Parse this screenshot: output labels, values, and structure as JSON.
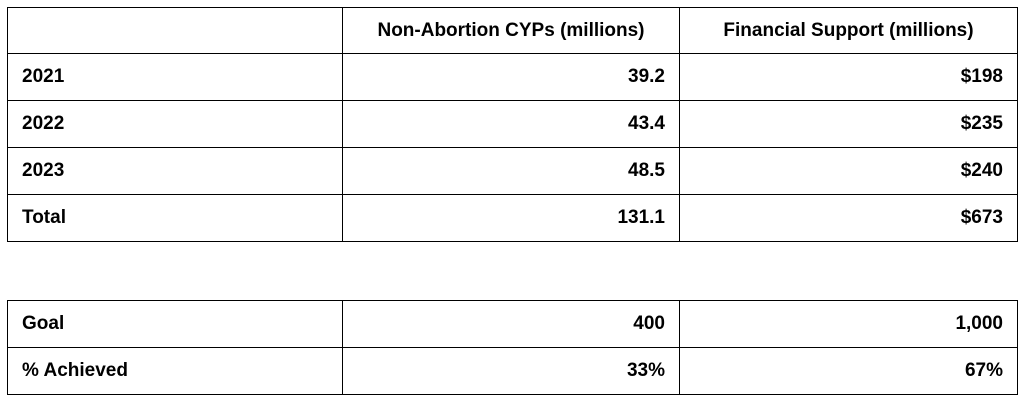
{
  "summary_table": {
    "headers": [
      "",
      "Non-Abortion CYPs (millions)",
      "Financial Support (millions)"
    ],
    "rows": [
      [
        "2021",
        "39.2",
        "$198"
      ],
      [
        "2022",
        "43.4",
        "$235"
      ],
      [
        "2023",
        "48.5",
        "$240"
      ],
      [
        "Total",
        "131.1",
        "$673"
      ]
    ]
  },
  "goal_table": {
    "rows": [
      [
        "Goal",
        "400",
        "1,000"
      ],
      [
        "% Achieved",
        "33%",
        "67%"
      ]
    ]
  }
}
